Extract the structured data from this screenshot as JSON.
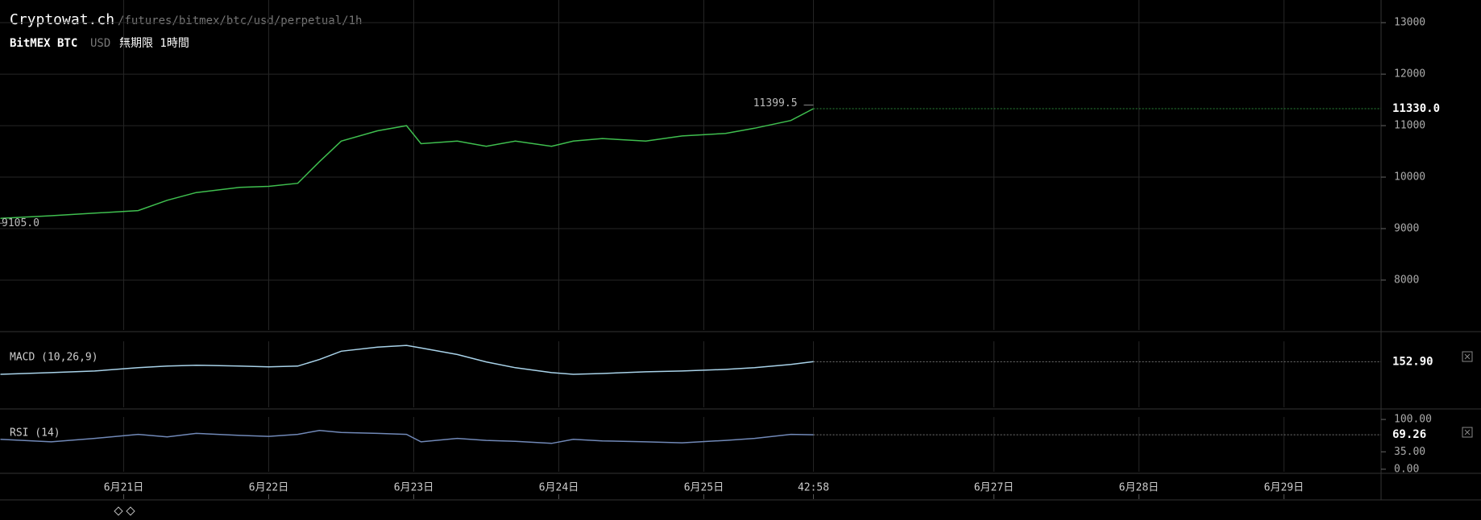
{
  "header": {
    "site": "Cryptowat.ch",
    "path": "/futures/bitmex/btc/usd/perpetual/1h",
    "market": "BitMEX BTC",
    "quote": "USD",
    "period": "無期限 1時間"
  },
  "chart_data": [
    {
      "type": "line",
      "color": "#3fbf4f",
      "x": [
        -0.85,
        -0.5,
        -0.2,
        0.1,
        0.3,
        0.5,
        0.8,
        1.0,
        1.2,
        1.35,
        1.5,
        1.75,
        1.95,
        2.05,
        2.3,
        2.5,
        2.7,
        2.95,
        3.1,
        3.3,
        3.6,
        3.85,
        4.15,
        4.35,
        4.6,
        4.756
      ],
      "values": [
        9200,
        9250,
        9300,
        9350,
        9550,
        9700,
        9800,
        9820,
        9880,
        10300,
        10700,
        10900,
        11000,
        10650,
        10700,
        10600,
        10700,
        10600,
        10700,
        10750,
        10700,
        10800,
        10850,
        10950,
        11100,
        11330
      ],
      "xlim": [
        -0.853,
        8.67
      ],
      "xticks": [
        {
          "value": 0,
          "label": "6月21日"
        },
        {
          "value": 1,
          "label": "6月22日"
        },
        {
          "value": 2,
          "label": "6月23日"
        },
        {
          "value": 3,
          "label": "6月24日"
        },
        {
          "value": 4,
          "label": "6月25日"
        },
        {
          "value": 4.756,
          "label": "42:58"
        },
        {
          "value": 6,
          "label": "6月27日"
        },
        {
          "value": 7,
          "label": "6月28日"
        },
        {
          "value": 8,
          "label": "6月29日"
        }
      ],
      "ylim": [
        7030,
        13440
      ],
      "yticks": [
        8000,
        9000,
        10000,
        11000,
        12000,
        13000
      ],
      "grid": true,
      "current": {
        "value": 11330,
        "label": "11330.0"
      },
      "high": {
        "value": 11399.5,
        "label": "11399.5"
      },
      "low": {
        "value": 9105,
        "label": "9105.0"
      }
    },
    {
      "type": "line",
      "title": "MACD (10,26,9)",
      "color": "#a9d3ea",
      "x": [
        -0.85,
        -0.5,
        -0.2,
        0.1,
        0.3,
        0.5,
        0.8,
        1.0,
        1.2,
        1.35,
        1.5,
        1.75,
        1.95,
        2.05,
        2.3,
        2.5,
        2.7,
        2.95,
        3.1,
        3.3,
        3.6,
        3.85,
        4.15,
        4.35,
        4.6,
        4.756
      ],
      "values": [
        0,
        20,
        40,
        80,
        100,
        110,
        100,
        90,
        100,
        180,
        280,
        330,
        350,
        320,
        240,
        150,
        80,
        20,
        0,
        10,
        30,
        40,
        60,
        80,
        120,
        152.9
      ],
      "ylim": [
        -400,
        400
      ],
      "current": {
        "value": 152.9,
        "label": "152.90"
      }
    },
    {
      "type": "line",
      "title": "RSI (14)",
      "color": "#7189b8",
      "x": [
        -0.85,
        -0.5,
        -0.2,
        0.1,
        0.3,
        0.5,
        0.8,
        1.0,
        1.2,
        1.35,
        1.5,
        1.75,
        1.95,
        2.05,
        2.3,
        2.5,
        2.7,
        2.95,
        3.1,
        3.3,
        3.6,
        3.85,
        4.15,
        4.35,
        4.6,
        4.756
      ],
      "values": [
        60,
        55,
        62,
        70,
        65,
        72,
        68,
        66,
        70,
        78,
        74,
        72,
        70,
        55,
        62,
        58,
        56,
        52,
        60,
        57,
        55,
        53,
        58,
        62,
        70,
        69.26
      ],
      "ylim": [
        -5,
        105
      ],
      "yticks": [
        {
          "value": 100,
          "label": "100.00"
        },
        {
          "value": 35,
          "label": "35.00"
        },
        {
          "value": 0,
          "label": "0.00"
        }
      ],
      "current": {
        "value": 69.26,
        "label": "69.26"
      }
    }
  ]
}
